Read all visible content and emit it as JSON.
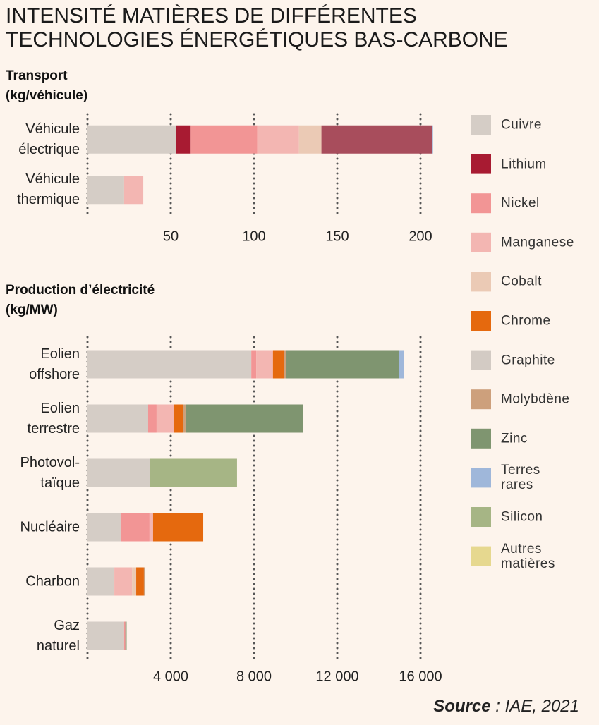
{
  "title": "INTENSITÉ MATIÈRES DE DIFFÉRENTES TECHNOLOGIES ÉNERGÉTIQUES BAS-CARBONE",
  "source_label": "Source",
  "source": ": IAE, 2021",
  "chart_data": [
    {
      "type": "stacked-barh",
      "title": "Transport",
      "subtitle": "(kg/véhicule)",
      "categories": [
        "Véhicule électrique",
        "Véhicule thermique"
      ],
      "series": [
        {
          "color": "#d5cdc6",
          "values": [
            53,
            22
          ]
        },
        {
          "color": "#a81b32",
          "values": [
            9,
            0
          ]
        },
        {
          "color": "#f29595",
          "values": [
            40,
            0
          ]
        },
        {
          "color": "#f3b6b2",
          "values": [
            25,
            11.5
          ]
        },
        {
          "color": "#ebcab5",
          "values": [
            13.5,
            0
          ]
        },
        {
          "color": "#a84d5c",
          "values": [
            66.5,
            0
          ]
        },
        {
          "color": "#9fb7da",
          "values": [
            0.5,
            0
          ]
        }
      ],
      "xlim": [
        0,
        210
      ],
      "xticks": [
        50,
        100,
        150,
        200
      ],
      "grid": true
    },
    {
      "type": "stacked-barh",
      "title": "Production d’électricité",
      "subtitle": "(kg/MW)",
      "categories": [
        "Eolien offshore",
        "Eolien terrestre",
        "Photovol-taïque",
        "Nucléaire",
        "Charbon",
        "Gaz naturel"
      ],
      "series": [
        {
          "name": "Cuivre",
          "color": "#d5cdc6",
          "values": [
            7870,
            2915,
            2985,
            1590,
            1290,
            1760
          ]
        },
        {
          "name": "Lithium",
          "color": "#a81b32",
          "values": [
            0,
            0,
            0,
            0,
            0,
            0
          ]
        },
        {
          "name": "Nickel",
          "color": "#f29595",
          "values": [
            240,
            405,
            0,
            1390,
            0,
            60
          ]
        },
        {
          "name": "Manganese",
          "color": "#f3b6b2",
          "values": [
            800,
            815,
            0,
            170,
            850,
            0
          ]
        },
        {
          "name": "Cobalt",
          "color": "#ebcab5",
          "values": [
            0,
            0,
            0,
            0,
            200,
            0
          ]
        },
        {
          "name": "Chrome",
          "color": "#e5690e",
          "values": [
            525,
            475,
            0,
            2410,
            370,
            0
          ]
        },
        {
          "name": "Graphite",
          "color": "#d3cbc4",
          "values": [
            0,
            0,
            0,
            0,
            0,
            0
          ]
        },
        {
          "name": "Molybdène",
          "color": "#cda07c",
          "values": [
            100,
            100,
            0,
            0,
            70,
            0
          ]
        },
        {
          "name": "Zinc",
          "color": "#7f9570",
          "values": [
            5420,
            5630,
            0,
            0,
            0,
            60
          ]
        },
        {
          "name": "Terres rares",
          "color": "#9fb7da",
          "values": [
            240,
            0,
            0,
            0,
            0,
            0
          ]
        },
        {
          "name": "Silicon",
          "color": "#a6b585",
          "values": [
            0,
            0,
            4200,
            0,
            0,
            0
          ]
        },
        {
          "name": "Autres matières",
          "color": "#e6d88f",
          "values": [
            0,
            0,
            0,
            0,
            0,
            0
          ]
        }
      ],
      "xlim": [
        0,
        16800
      ],
      "xticks": [
        {
          "value": 4000,
          "label": "4 000"
        },
        {
          "value": 8000,
          "label": "8 000"
        },
        {
          "value": 12000,
          "label": "12 000"
        },
        {
          "value": 16000,
          "label": "16 000"
        }
      ],
      "grid": true,
      "legend": "right"
    }
  ]
}
